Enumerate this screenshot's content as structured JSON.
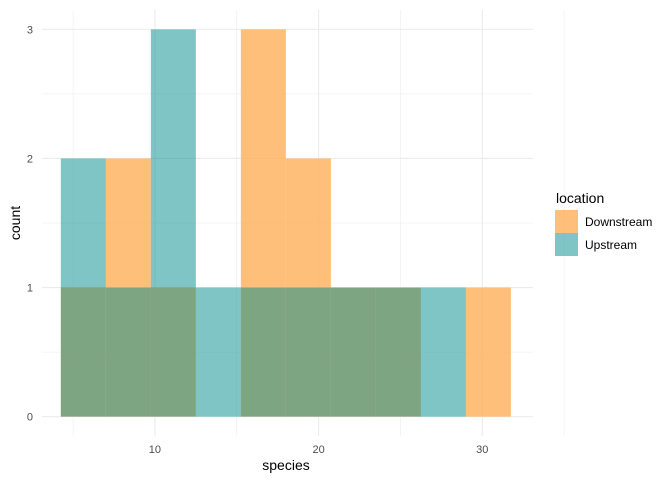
{
  "chart_data": {
    "type": "bar",
    "subtype": "overlapping-histogram",
    "xlabel": "species",
    "ylabel": "count",
    "xlim": [
      3.1,
      33.1
    ],
    "ylim": [
      -0.15,
      3.15
    ],
    "xticks": [
      10,
      20,
      30
    ],
    "yticks": [
      0,
      1,
      2,
      3
    ],
    "grid": true,
    "legend": {
      "title": "location",
      "placement": "right"
    },
    "bin_width": 2.75,
    "series": [
      {
        "name": "Downstream",
        "color": "#FDB462",
        "bins": [
          {
            "x0": 4.25,
            "x1": 7.0,
            "count": 1
          },
          {
            "x0": 7.0,
            "x1": 9.75,
            "count": 2
          },
          {
            "x0": 9.75,
            "x1": 12.5,
            "count": 1
          },
          {
            "x0": 12.5,
            "x1": 15.25,
            "count": 0
          },
          {
            "x0": 15.25,
            "x1": 18.0,
            "count": 3
          },
          {
            "x0": 18.0,
            "x1": 20.75,
            "count": 2
          },
          {
            "x0": 20.75,
            "x1": 23.5,
            "count": 1
          },
          {
            "x0": 23.5,
            "x1": 26.25,
            "count": 1
          },
          {
            "x0": 26.25,
            "x1": 29.0,
            "count": 0
          },
          {
            "x0": 29.0,
            "x1": 31.75,
            "count": 1
          }
        ]
      },
      {
        "name": "Upstream",
        "color": "#008B8B",
        "bins": [
          {
            "x0": 4.25,
            "x1": 7.0,
            "count": 2
          },
          {
            "x0": 7.0,
            "x1": 9.75,
            "count": 1
          },
          {
            "x0": 9.75,
            "x1": 12.5,
            "count": 3
          },
          {
            "x0": 12.5,
            "x1": 15.25,
            "count": 1
          },
          {
            "x0": 15.25,
            "x1": 18.0,
            "count": 1
          },
          {
            "x0": 18.0,
            "x1": 20.75,
            "count": 1
          },
          {
            "x0": 20.75,
            "x1": 23.5,
            "count": 1
          },
          {
            "x0": 23.5,
            "x1": 26.25,
            "count": 1
          },
          {
            "x0": 26.25,
            "x1": 29.0,
            "count": 1
          },
          {
            "x0": 29.0,
            "x1": 31.75,
            "count": 0
          }
        ]
      }
    ]
  }
}
